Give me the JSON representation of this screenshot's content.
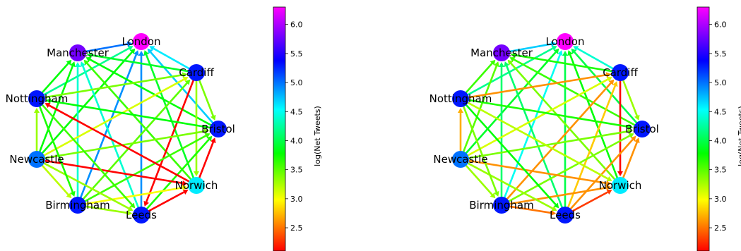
{
  "chart_data": [
    {
      "type": "network",
      "title": "",
      "cities": [
        "London",
        "Cardiff",
        "Bristol",
        "Norwich",
        "Leeds",
        "Birmingham",
        "Newcastle",
        "Nottingham",
        "Manchester"
      ],
      "node_values": {
        "London": 6.3,
        "Cardiff": 5.3,
        "Bristol": 5.3,
        "Norwich": 4.6,
        "Leeds": 5.3,
        "Birmingham": 5.3,
        "Newcastle": 5.0,
        "Nottingham": 5.3,
        "Manchester": 5.8
      },
      "edges": [
        {
          "from": "Cardiff",
          "to": "London",
          "value": 4.6
        },
        {
          "from": "Bristol",
          "to": "London",
          "value": 4.7
        },
        {
          "from": "Norwich",
          "to": "London",
          "value": 3.9
        },
        {
          "from": "Leeds",
          "to": "London",
          "value": 4.9
        },
        {
          "from": "Birmingham",
          "to": "London",
          "value": 4.9
        },
        {
          "from": "Newcastle",
          "to": "London",
          "value": 3.8
        },
        {
          "from": "Nottingham",
          "to": "London",
          "value": 4.2
        },
        {
          "from": "Manchester",
          "to": "London",
          "value": 5.0
        },
        {
          "from": "Cardiff",
          "to": "Manchester",
          "value": 3.9
        },
        {
          "from": "Bristol",
          "to": "Manchester",
          "value": 3.8
        },
        {
          "from": "Norwich",
          "to": "Manchester",
          "value": 3.6
        },
        {
          "from": "Leeds",
          "to": "Manchester",
          "value": 4.4
        },
        {
          "from": "Birmingham",
          "to": "Manchester",
          "value": 4.4
        },
        {
          "from": "Newcastle",
          "to": "Manchester",
          "value": 3.8
        },
        {
          "from": "Nottingham",
          "to": "Manchester",
          "value": 3.8
        },
        {
          "from": "Cardiff",
          "to": "Bristol",
          "value": 3.4
        },
        {
          "from": "Cardiff",
          "to": "Norwich",
          "value": 3.3
        },
        {
          "from": "Cardiff",
          "to": "Leeds",
          "value": 2.0
        },
        {
          "from": "Birmingham",
          "to": "Cardiff",
          "value": 3.5
        },
        {
          "from": "Newcastle",
          "to": "Cardiff",
          "value": 3.1
        },
        {
          "from": "Nottingham",
          "to": "Cardiff",
          "value": 3.4
        },
        {
          "from": "Bristol",
          "to": "Nottingham",
          "value": 3.8
        },
        {
          "from": "Norwich",
          "to": "Bristol",
          "value": 2.0
        },
        {
          "from": "Leeds",
          "to": "Bristol",
          "value": 3.7
        },
        {
          "from": "Birmingham",
          "to": "Bristol",
          "value": 3.6
        },
        {
          "from": "Newcastle",
          "to": "Bristol",
          "value": 3.4
        },
        {
          "from": "Norwich",
          "to": "Nottingham",
          "value": 2.0
        },
        {
          "from": "Newcastle",
          "to": "Norwich",
          "value": 2.0
        },
        {
          "from": "Leeds",
          "to": "Norwich",
          "value": 2.0
        },
        {
          "from": "Birmingham",
          "to": "Norwich",
          "value": 3.0
        },
        {
          "from": "Nottingham",
          "to": "Leeds",
          "value": 3.6
        },
        {
          "from": "Newcastle",
          "to": "Leeds",
          "value": 3.3
        },
        {
          "from": "Birmingham",
          "to": "Leeds",
          "value": 3.3
        },
        {
          "from": "Nottingham",
          "to": "Birmingham",
          "value": 3.7
        },
        {
          "from": "Newcastle",
          "to": "Birmingham",
          "value": 3.2
        },
        {
          "from": "Newcastle",
          "to": "Nottingham",
          "value": 3.3
        }
      ],
      "colorbar": {
        "label": "log(Net Tweets)",
        "vmin": 2.1,
        "vmax": 6.3,
        "ticks": [
          "2.5",
          "3.0",
          "3.5",
          "4.0",
          "4.5",
          "5.0",
          "5.5",
          "6.0"
        ],
        "colormap": "gist_rainbow"
      }
    },
    {
      "type": "network",
      "title": "",
      "cities": [
        "London",
        "Cardiff",
        "Bristol",
        "Norwich",
        "Leeds",
        "Birmingham",
        "Newcastle",
        "Nottingham",
        "Manchester"
      ],
      "node_values": {
        "London": 6.3,
        "Cardiff": 5.3,
        "Bristol": 5.3,
        "Norwich": 4.6,
        "Leeds": 5.3,
        "Birmingham": 5.3,
        "Newcastle": 5.0,
        "Nottingham": 5.3,
        "Manchester": 5.8
      },
      "edges": [
        {
          "from": "Cardiff",
          "to": "London",
          "value": 4.4
        },
        {
          "from": "Bristol",
          "to": "London",
          "value": 4.0
        },
        {
          "from": "Norwich",
          "to": "London",
          "value": 3.8
        },
        {
          "from": "Leeds",
          "to": "London",
          "value": 4.0
        },
        {
          "from": "Birmingham",
          "to": "London",
          "value": 4.5
        },
        {
          "from": "Newcastle",
          "to": "London",
          "value": 3.9
        },
        {
          "from": "Nottingham",
          "to": "London",
          "value": 4.2
        },
        {
          "from": "Manchester",
          "to": "London",
          "value": 4.7
        },
        {
          "from": "Cardiff",
          "to": "Manchester",
          "value": 3.7
        },
        {
          "from": "Bristol",
          "to": "Manchester",
          "value": 3.6
        },
        {
          "from": "Norwich",
          "to": "Manchester",
          "value": 3.4
        },
        {
          "from": "Leeds",
          "to": "Manchester",
          "value": 4.1
        },
        {
          "from": "Birmingham",
          "to": "Manchester",
          "value": 4.1
        },
        {
          "from": "Newcastle",
          "to": "Manchester",
          "value": 3.5
        },
        {
          "from": "Nottingham",
          "to": "Manchester",
          "value": 3.6
        },
        {
          "from": "Cardiff",
          "to": "Bristol",
          "value": 3.3
        },
        {
          "from": "Cardiff",
          "to": "Norwich",
          "value": 2.1
        },
        {
          "from": "Leeds",
          "to": "Cardiff",
          "value": 2.8
        },
        {
          "from": "Birmingham",
          "to": "Cardiff",
          "value": 2.6
        },
        {
          "from": "Newcastle",
          "to": "Cardiff",
          "value": 3.1
        },
        {
          "from": "Nottingham",
          "to": "Cardiff",
          "value": 2.6
        },
        {
          "from": "Nottingham",
          "to": "Bristol",
          "value": 3.7
        },
        {
          "from": "Norwich",
          "to": "Bristol",
          "value": 2.6
        },
        {
          "from": "Leeds",
          "to": "Bristol",
          "value": 2.6
        },
        {
          "from": "Birmingham",
          "to": "Bristol",
          "value": 3.4
        },
        {
          "from": "Newcastle",
          "to": "Bristol",
          "value": 3.4
        },
        {
          "from": "Nottingham",
          "to": "Norwich",
          "value": 3.2
        },
        {
          "from": "Newcastle",
          "to": "Norwich",
          "value": 2.6
        },
        {
          "from": "Leeds",
          "to": "Norwich",
          "value": 2.3
        },
        {
          "from": "Birmingham",
          "to": "Norwich",
          "value": 2.6
        },
        {
          "from": "Nottingham",
          "to": "Leeds",
          "value": 3.8
        },
        {
          "from": "Newcastle",
          "to": "Leeds",
          "value": 3.3
        },
        {
          "from": "Birmingham",
          "to": "Leeds",
          "value": 2.5
        },
        {
          "from": "Nottingham",
          "to": "Birmingham",
          "value": 3.4
        },
        {
          "from": "Newcastle",
          "to": "Birmingham",
          "value": 3.3
        },
        {
          "from": "Newcastle",
          "to": "Nottingham",
          "value": 2.7
        }
      ],
      "colorbar": {
        "label": "log(Net Tweets)",
        "vmin": 2.1,
        "vmax": 6.3,
        "ticks": [
          "2.5",
          "3.0",
          "3.5",
          "4.0",
          "4.5",
          "5.0",
          "5.5",
          "6.0"
        ],
        "colormap": "gist_rainbow"
      }
    }
  ]
}
